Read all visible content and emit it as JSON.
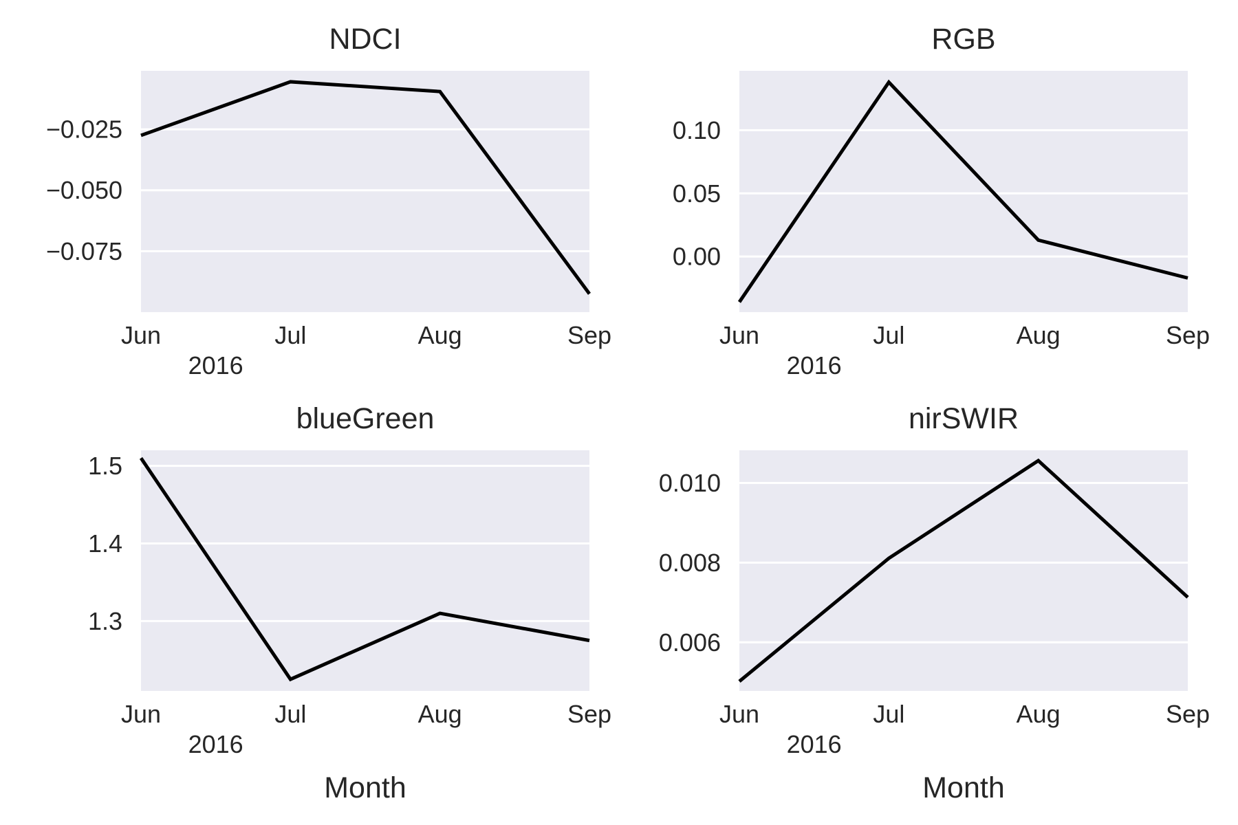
{
  "chart_data": [
    {
      "type": "line",
      "title": "NDCI",
      "categories": [
        "Jun",
        "Jul",
        "Aug",
        "Sep"
      ],
      "year_label": "2016",
      "xlabel": "",
      "ylabel": "",
      "values": [
        -0.0275,
        -0.0055,
        -0.0095,
        -0.0925
      ],
      "ylim": [
        -0.1,
        -0.001
      ],
      "yticks": [
        -0.075,
        -0.05,
        -0.025
      ],
      "ytick_labels": [
        "−0.075",
        "−0.050",
        "−0.025"
      ],
      "grid": true
    },
    {
      "type": "line",
      "title": "RGB",
      "categories": [
        "Jun",
        "Jul",
        "Aug",
        "Sep"
      ],
      "year_label": "2016",
      "xlabel": "",
      "ylabel": "",
      "values": [
        -0.036,
        0.138,
        0.013,
        -0.017
      ],
      "ylim": [
        -0.044,
        0.147
      ],
      "yticks": [
        0.0,
        0.05,
        0.1
      ],
      "ytick_labels": [
        "0.00",
        "0.05",
        "0.10"
      ],
      "grid": true
    },
    {
      "type": "line",
      "title": "blueGreen",
      "categories": [
        "Jun",
        "Jul",
        "Aug",
        "Sep"
      ],
      "year_label": "2016",
      "xlabel": "Month",
      "ylabel": "",
      "values": [
        1.51,
        1.225,
        1.31,
        1.275
      ],
      "ylim": [
        1.21,
        1.52
      ],
      "yticks": [
        1.3,
        1.4,
        1.5
      ],
      "ytick_labels": [
        "1.3",
        "1.4",
        "1.5"
      ],
      "grid": true
    },
    {
      "type": "line",
      "title": "nirSWIR",
      "categories": [
        "Jun",
        "Jul",
        "Aug",
        "Sep"
      ],
      "year_label": "2016",
      "xlabel": "Month",
      "ylabel": "",
      "values": [
        0.00502,
        0.00811,
        0.01056,
        0.00713
      ],
      "ylim": [
        0.00478,
        0.01082
      ],
      "yticks": [
        0.006,
        0.008,
        0.01
      ],
      "ytick_labels": [
        "0.006",
        "0.008",
        "0.010"
      ],
      "grid": true
    }
  ]
}
